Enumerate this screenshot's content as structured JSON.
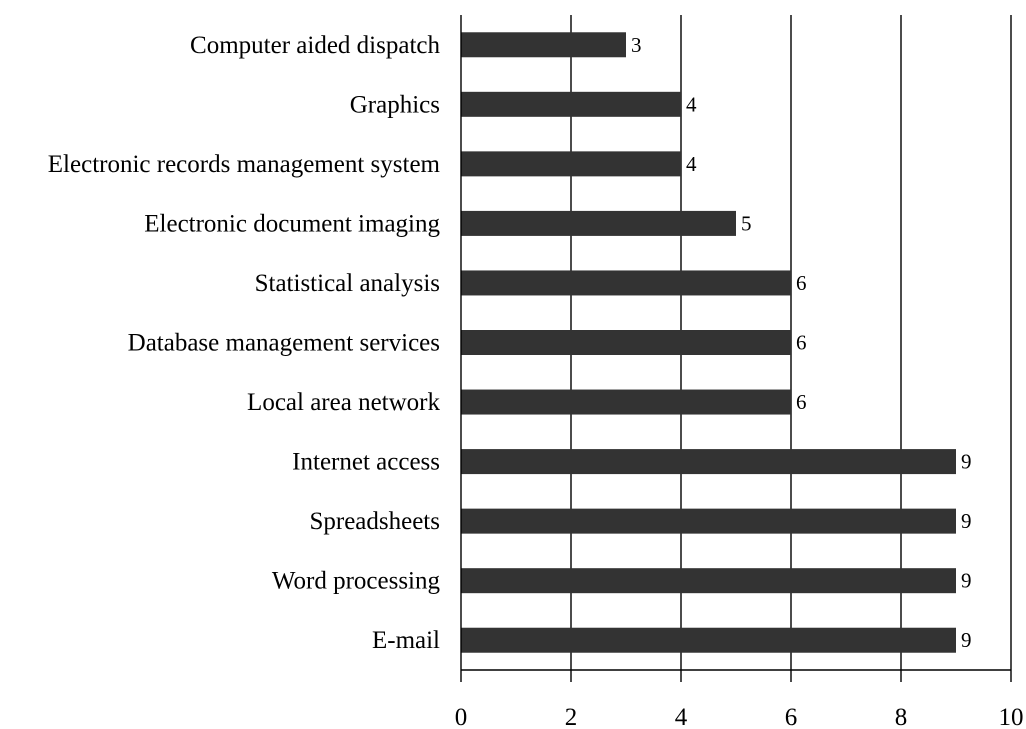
{
  "chart_data": {
    "type": "bar",
    "orientation": "horizontal",
    "title": "",
    "xlabel": "",
    "ylabel": "",
    "categories": [
      "Computer aided dispatch",
      "Graphics",
      "Electronic records management system",
      "Electronic document imaging",
      "Statistical analysis",
      "Database management services",
      "Local area network",
      "Internet access",
      "Spreadsheets",
      "Word processing",
      "E-mail"
    ],
    "values": [
      3,
      4,
      4,
      5,
      6,
      6,
      6,
      9,
      9,
      9,
      9
    ],
    "xlim": [
      0,
      10
    ],
    "xticks": [
      0,
      2,
      4,
      6,
      8,
      10
    ],
    "grid": "vertical",
    "data_labels": true,
    "legend": "none",
    "colors": {
      "bar": "#333333",
      "grid": "#000000",
      "text": "#000000"
    }
  }
}
